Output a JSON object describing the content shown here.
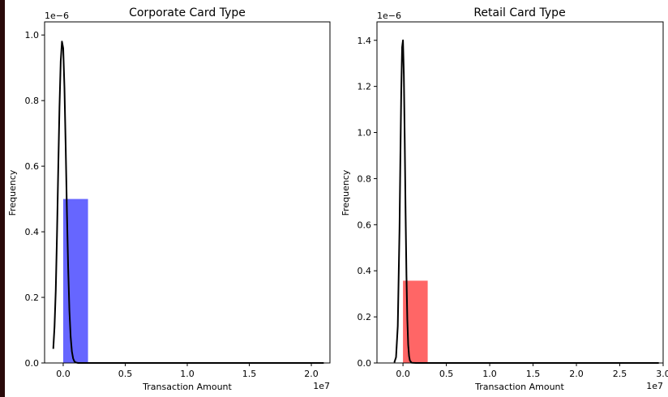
{
  "chart_data": [
    {
      "type": "histogram+line",
      "title": "Corporate Card Type",
      "xlabel": "Transaction Amount",
      "ylabel": "Frequency",
      "x_offset_text": "1e7",
      "y_offset_text": "1e−6",
      "xlim": [
        -1500000.0,
        21500000.0
      ],
      "ylim": [
        0,
        1.04e-06
      ],
      "xticks": [
        0,
        5000000,
        10000000,
        15000000,
        20000000
      ],
      "xtick_labels": [
        "0.0",
        "0.5",
        "1.0",
        "1.5",
        "2.0"
      ],
      "yticks": [
        0,
        2e-07,
        4e-07,
        6e-07,
        8e-07,
        1e-06
      ],
      "ytick_labels": [
        "0.0",
        "0.2",
        "0.4",
        "0.6",
        "0.8",
        "1.0"
      ],
      "bars": [
        {
          "x0": 0,
          "x1": 2000000,
          "value": 5e-07,
          "color": "#6666ff"
        },
        {
          "x0": 2000000,
          "x1": 21000000,
          "value": 0.0,
          "color": "#6666ff"
        }
      ],
      "curve": {
        "color": "#000000",
        "x": [
          -800000,
          -700000,
          -600000,
          -500000,
          -400000,
          -300000,
          -200000,
          -100000,
          0,
          100000,
          200000,
          300000,
          400000,
          500000,
          600000,
          700000,
          800000,
          900000,
          1000000,
          1200000,
          1500000,
          2000000,
          21000000
        ],
        "y": [
          4.3e-08,
          1.1e-07,
          2.2e-07,
          3.9e-07,
          5.9e-07,
          7.8e-07,
          9.2e-07,
          9.8e-07,
          9.6e-07,
          8.4e-07,
          6.6e-07,
          4.6e-07,
          2.9e-07,
          1.6e-07,
          8e-08,
          3.5e-08,
          1.4e-08,
          5e-09,
          1.5e-09,
          1e-10,
          0,
          0,
          0
        ]
      }
    },
    {
      "type": "histogram+line",
      "title": "Retail Card Type",
      "xlabel": "Transaction Amount",
      "ylabel": "Frequency",
      "x_offset_text": "1e7",
      "y_offset_text": "1e−6",
      "xlim": [
        -3000000.0,
        30000000.0
      ],
      "ylim": [
        0,
        1.48e-06
      ],
      "xticks": [
        0,
        5000000,
        10000000,
        15000000,
        20000000,
        25000000,
        30000000
      ],
      "xtick_labels": [
        "0.0",
        "0.5",
        "1.0",
        "1.5",
        "2.0",
        "2.5",
        "3.0"
      ],
      "yticks": [
        0,
        2e-07,
        4e-07,
        6e-07,
        8e-07,
        1e-06,
        1.2e-06,
        1.4e-06
      ],
      "ytick_labels": [
        "0.0",
        "0.2",
        "0.4",
        "0.6",
        "0.8",
        "1.0",
        "1.2",
        "1.4"
      ],
      "bars": [
        {
          "x0": 0,
          "x1": 2850000,
          "value": 3.57e-07,
          "color": "#ff6666"
        },
        {
          "x0": 2850000,
          "x1": 29500000,
          "value": 0.0,
          "color": "#ff6666"
        }
      ],
      "curve": {
        "color": "#000000",
        "x": [
          -1000000,
          -800000,
          -600000,
          -400000,
          -300000,
          -200000,
          -100000,
          0,
          100000,
          200000,
          300000,
          400000,
          500000,
          600000,
          700000,
          800000,
          1000000,
          1500000,
          29500000
        ],
        "y": [
          2e-09,
          2.5e-08,
          1.6e-07,
          5.8e-07,
          8.9e-07,
          1.18e-06,
          1.37e-06,
          1.4e-06,
          1.25e-06,
          9.7e-07,
          6.5e-07,
          3.8e-07,
          1.9e-07,
          8e-08,
          3e-08,
          1e-08,
          1e-09,
          0,
          0
        ]
      }
    }
  ]
}
